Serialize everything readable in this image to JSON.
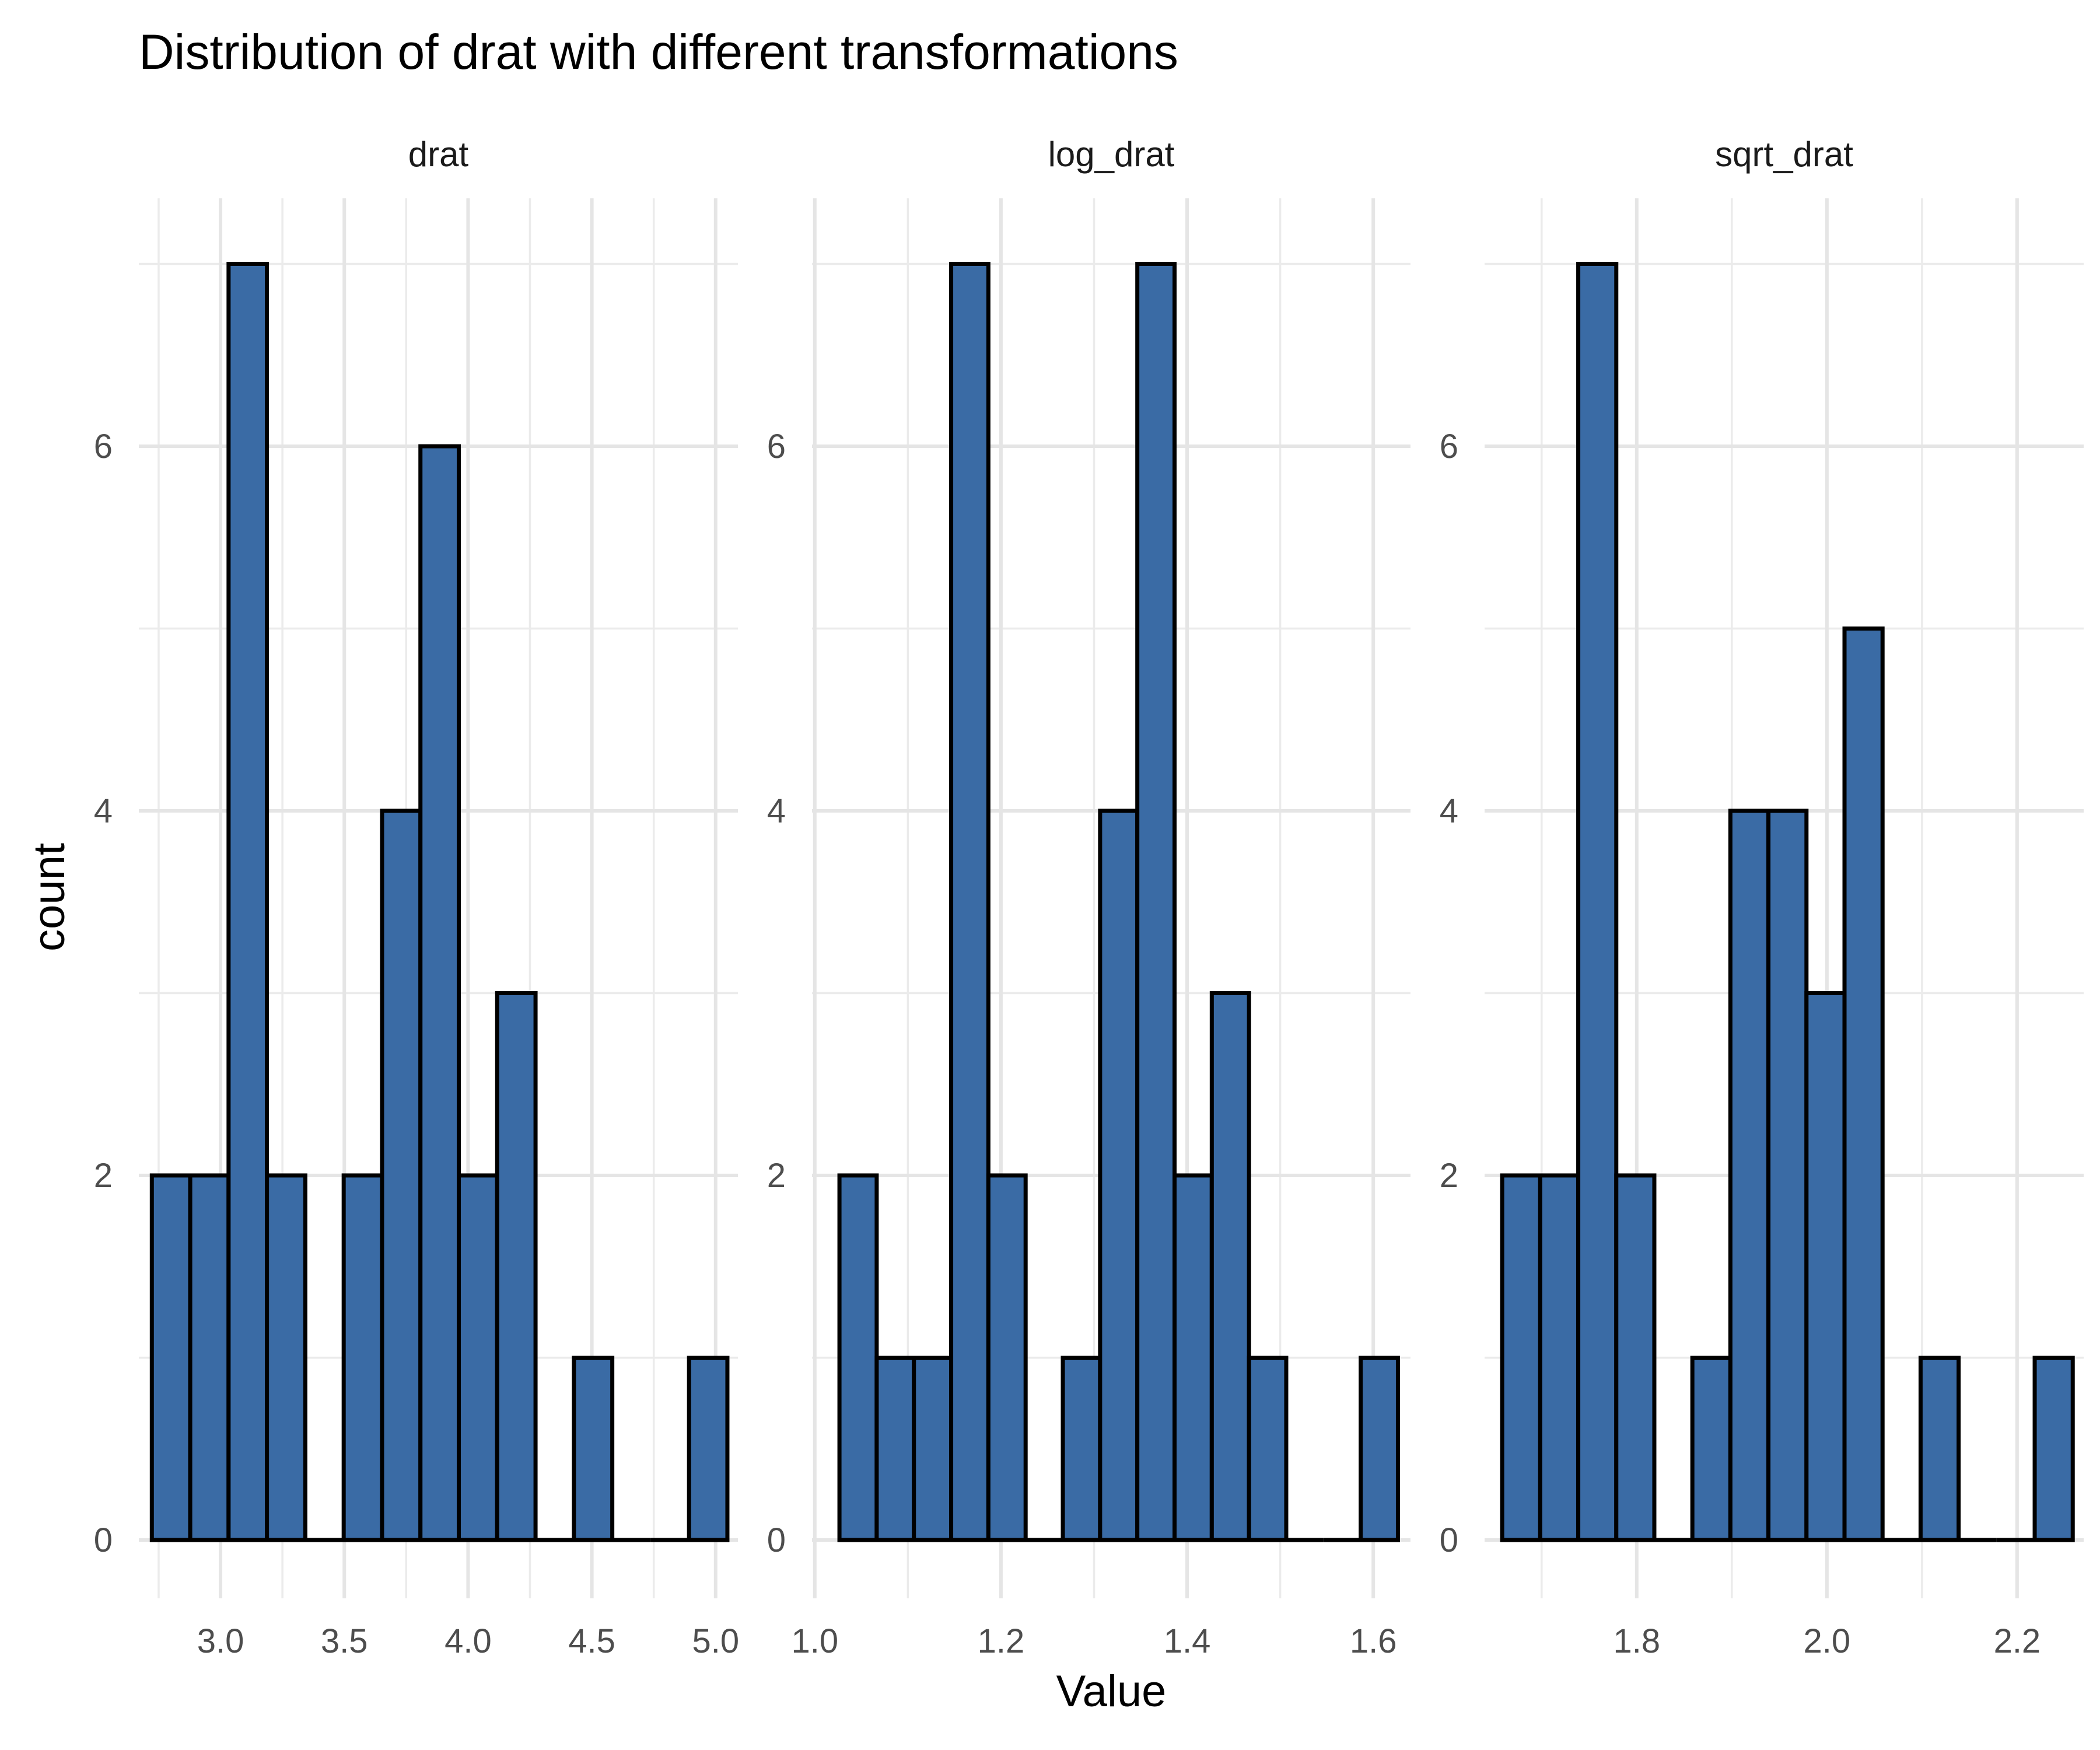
{
  "chart_data": {
    "type": "bar",
    "subtype": "faceted-histogram",
    "title": "Distribution of drat with different transformations",
    "xlabel": "Value",
    "ylabel": "count",
    "ylim": [
      0,
      7
    ],
    "y_ticks": [
      0,
      2,
      4,
      6
    ],
    "grid": true,
    "legend": "none",
    "colors": {
      "bar_fill": "#3A6BA5",
      "bar_outline": "#000000",
      "grid": "#E5E5E5"
    },
    "facets": [
      {
        "name": "drat",
        "xlim": [
          2.67,
          5.09
        ],
        "x_ticks": [
          3.0,
          3.5,
          4.0,
          4.5,
          5.0
        ],
        "x_tick_labels": [
          "3.0",
          "3.5",
          "4.0",
          "4.5",
          "5.0"
        ],
        "bin_start": 2.7225,
        "bin_width": 0.155,
        "counts": [
          2,
          2,
          7,
          2,
          0,
          2,
          4,
          6,
          2,
          3,
          0,
          1,
          0,
          0,
          1
        ]
      },
      {
        "name": "log_drat",
        "xlim": [
          0.997,
          1.64
        ],
        "x_ticks": [
          1.0,
          1.2,
          1.4,
          1.6
        ],
        "x_tick_labels": [
          "1.0",
          "1.2",
          "1.4",
          "1.6"
        ],
        "bin_start": 1.0265,
        "bin_width": 0.04,
        "counts": [
          2,
          1,
          1,
          7,
          2,
          0,
          1,
          4,
          7,
          2,
          3,
          1,
          0,
          0,
          1
        ]
      },
      {
        "name": "sqrt_drat",
        "xlim": [
          1.64,
          2.27
        ],
        "x_ticks": [
          1.8,
          2.0,
          2.2
        ],
        "x_tick_labels": [
          "1.8",
          "2.0",
          "2.2"
        ],
        "bin_start": 1.6585,
        "bin_width": 0.04,
        "counts": [
          2,
          2,
          7,
          2,
          0,
          1,
          4,
          4,
          3,
          5,
          0,
          1,
          0,
          0,
          1
        ]
      }
    ]
  }
}
